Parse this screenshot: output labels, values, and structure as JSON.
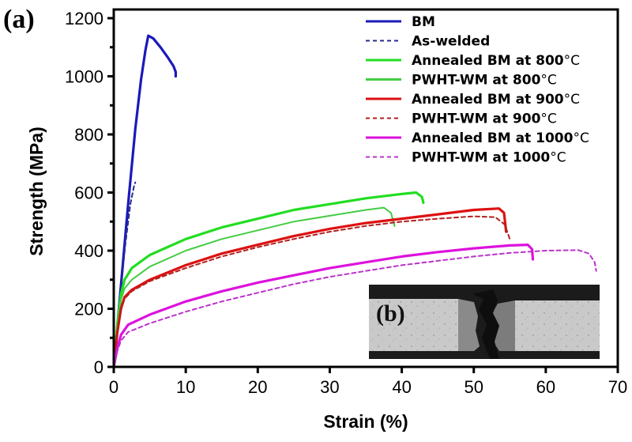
{
  "chart_data": {
    "type": "line",
    "panel_label": "(a)",
    "title": "",
    "xlabel": "Strain (%)",
    "ylabel": "Strength (MPa)",
    "xlim": [
      0,
      70
    ],
    "ylim": [
      0,
      1200
    ],
    "xticks": [
      0,
      10,
      20,
      30,
      40,
      50,
      60,
      70
    ],
    "yticks": [
      0,
      200,
      400,
      600,
      800,
      1000,
      1200
    ],
    "grid": false,
    "legend_position": "top-right",
    "series": [
      {
        "name": "BM",
        "color": "#1a1aba",
        "dash": false,
        "x": [
          0,
          1,
          2,
          3,
          3.8,
          4.4,
          4.8,
          5.5,
          6.5,
          7.5,
          8.3,
          8.6,
          8.6
        ],
        "y": [
          0,
          280,
          560,
          820,
          990,
          1090,
          1140,
          1130,
          1100,
          1065,
          1035,
          1015,
          1000
        ]
      },
      {
        "name": "As-welded",
        "color": "#2a2a90",
        "dash": true,
        "x": [
          0,
          0.8,
          1.6,
          2.3,
          2.8,
          3.0
        ],
        "y": [
          0,
          220,
          420,
          560,
          620,
          635
        ]
      },
      {
        "name": "Annealed BM at 800°C",
        "color": "#22dd22",
        "dash": false,
        "x": [
          0,
          0.5,
          1,
          1.5,
          2.5,
          5,
          10,
          15,
          20,
          25,
          30,
          35,
          40,
          42,
          42.8,
          43
        ],
        "y": [
          0,
          150,
          250,
          300,
          340,
          385,
          440,
          480,
          510,
          540,
          560,
          580,
          595,
          600,
          585,
          565
        ]
      },
      {
        "name": "PWHT-WM at 800°C",
        "color": "#44cc44",
        "dash": false,
        "x": [
          0,
          0.5,
          1,
          1.5,
          2.5,
          5,
          10,
          15,
          20,
          25,
          30,
          35,
          37.5,
          38.5,
          39
        ],
        "y": [
          0,
          140,
          230,
          270,
          300,
          345,
          400,
          440,
          470,
          500,
          520,
          540,
          548,
          530,
          485
        ]
      },
      {
        "name": "Annealed BM at 900°C",
        "color": "#dd1111",
        "dash": false,
        "x": [
          0,
          0.5,
          1,
          1.5,
          2.5,
          5,
          10,
          15,
          20,
          25,
          30,
          35,
          40,
          45,
          50,
          53.5,
          54.2,
          54.5
        ],
        "y": [
          0,
          120,
          200,
          240,
          265,
          300,
          350,
          390,
          420,
          450,
          475,
          495,
          510,
          525,
          540,
          545,
          530,
          465
        ]
      },
      {
        "name": "PWHT-WM at 900°C",
        "color": "#b02020",
        "dash": true,
        "x": [
          0,
          0.5,
          1,
          1.5,
          2.5,
          5,
          10,
          15,
          20,
          25,
          30,
          35,
          40,
          45,
          50,
          53,
          54.3,
          55
        ],
        "y": [
          0,
          115,
          195,
          235,
          260,
          295,
          340,
          380,
          412,
          440,
          465,
          485,
          500,
          510,
          518,
          515,
          490,
          440
        ]
      },
      {
        "name": "Annealed BM at 1000°C",
        "color": "#dd11dd",
        "dash": false,
        "x": [
          0,
          0.5,
          1,
          2,
          5,
          10,
          15,
          20,
          25,
          30,
          35,
          40,
          45,
          50,
          55,
          57.5,
          58.1,
          58.2
        ],
        "y": [
          0,
          65,
          110,
          145,
          180,
          225,
          260,
          290,
          315,
          340,
          360,
          380,
          395,
          408,
          418,
          420,
          405,
          370
        ]
      },
      {
        "name": "PWHT-WM at 1000°C",
        "color": "#bb33cc",
        "dash": true,
        "x": [
          0,
          0.5,
          1,
          2,
          5,
          10,
          15,
          20,
          25,
          30,
          35,
          40,
          45,
          50,
          55,
          60,
          64.5,
          66,
          66.8,
          67
        ],
        "y": [
          0,
          55,
          90,
          120,
          150,
          190,
          225,
          255,
          285,
          310,
          330,
          350,
          365,
          380,
          392,
          400,
          402,
          390,
          360,
          330
        ]
      }
    ],
    "legend": [
      {
        "label": "BM",
        "unit": ""
      },
      {
        "label": "As-welded",
        "unit": ""
      },
      {
        "label": "Annealed BM at 800",
        "unit": "°C"
      },
      {
        "label": "PWHT-WM at 800",
        "unit": "°C"
      },
      {
        "label": "Annealed BM at 900",
        "unit": "°C"
      },
      {
        "label": "PWHT-WM at 900",
        "unit": "°C"
      },
      {
        "label": "Annealed BM at 1000",
        "unit": "°C"
      },
      {
        "label": "PWHT-WM at 1000",
        "unit": "°C"
      }
    ],
    "inset": {
      "label": "(b)",
      "description": "fractured welded tensile specimen micrograph"
    }
  }
}
